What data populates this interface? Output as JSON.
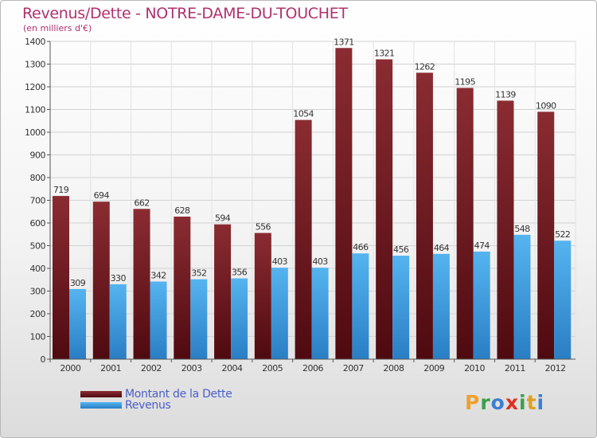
{
  "title": "Revenus/Dette - NOTRE-DAME-DU-TOUCHET",
  "subtitle": "(en milliers d'€)",
  "logo": {
    "letters": [
      "P",
      "r",
      "o",
      "x",
      "i",
      "t",
      "i"
    ],
    "colors": [
      "#f0a030",
      "#3aa04a",
      "#3a7fd0",
      "#e03020",
      "#3aa04a",
      "#e0a020",
      "#3a7fd0"
    ]
  },
  "chart_data": {
    "type": "bar",
    "categories": [
      "2000",
      "2001",
      "2002",
      "2003",
      "2004",
      "2005",
      "2006",
      "2007",
      "2008",
      "2009",
      "2010",
      "2011",
      "2012"
    ],
    "series": [
      {
        "name": "Montant de la Dette",
        "values": [
          719,
          694,
          662,
          628,
          594,
          556,
          1054,
          1371,
          1321,
          1262,
          1195,
          1139,
          1090
        ],
        "color": "#7a1e24"
      },
      {
        "name": "Revenus",
        "values": [
          309,
          330,
          342,
          352,
          356,
          403,
          403,
          466,
          456,
          464,
          474,
          548,
          522
        ],
        "color": "#3e9ee0"
      }
    ],
    "yticks": [
      0,
      100,
      200,
      300,
      400,
      500,
      600,
      700,
      800,
      900,
      1000,
      1100,
      1200,
      1300,
      1400
    ],
    "ylim": [
      0,
      1400
    ],
    "grid": true,
    "legend_position": "bottom-left"
  }
}
